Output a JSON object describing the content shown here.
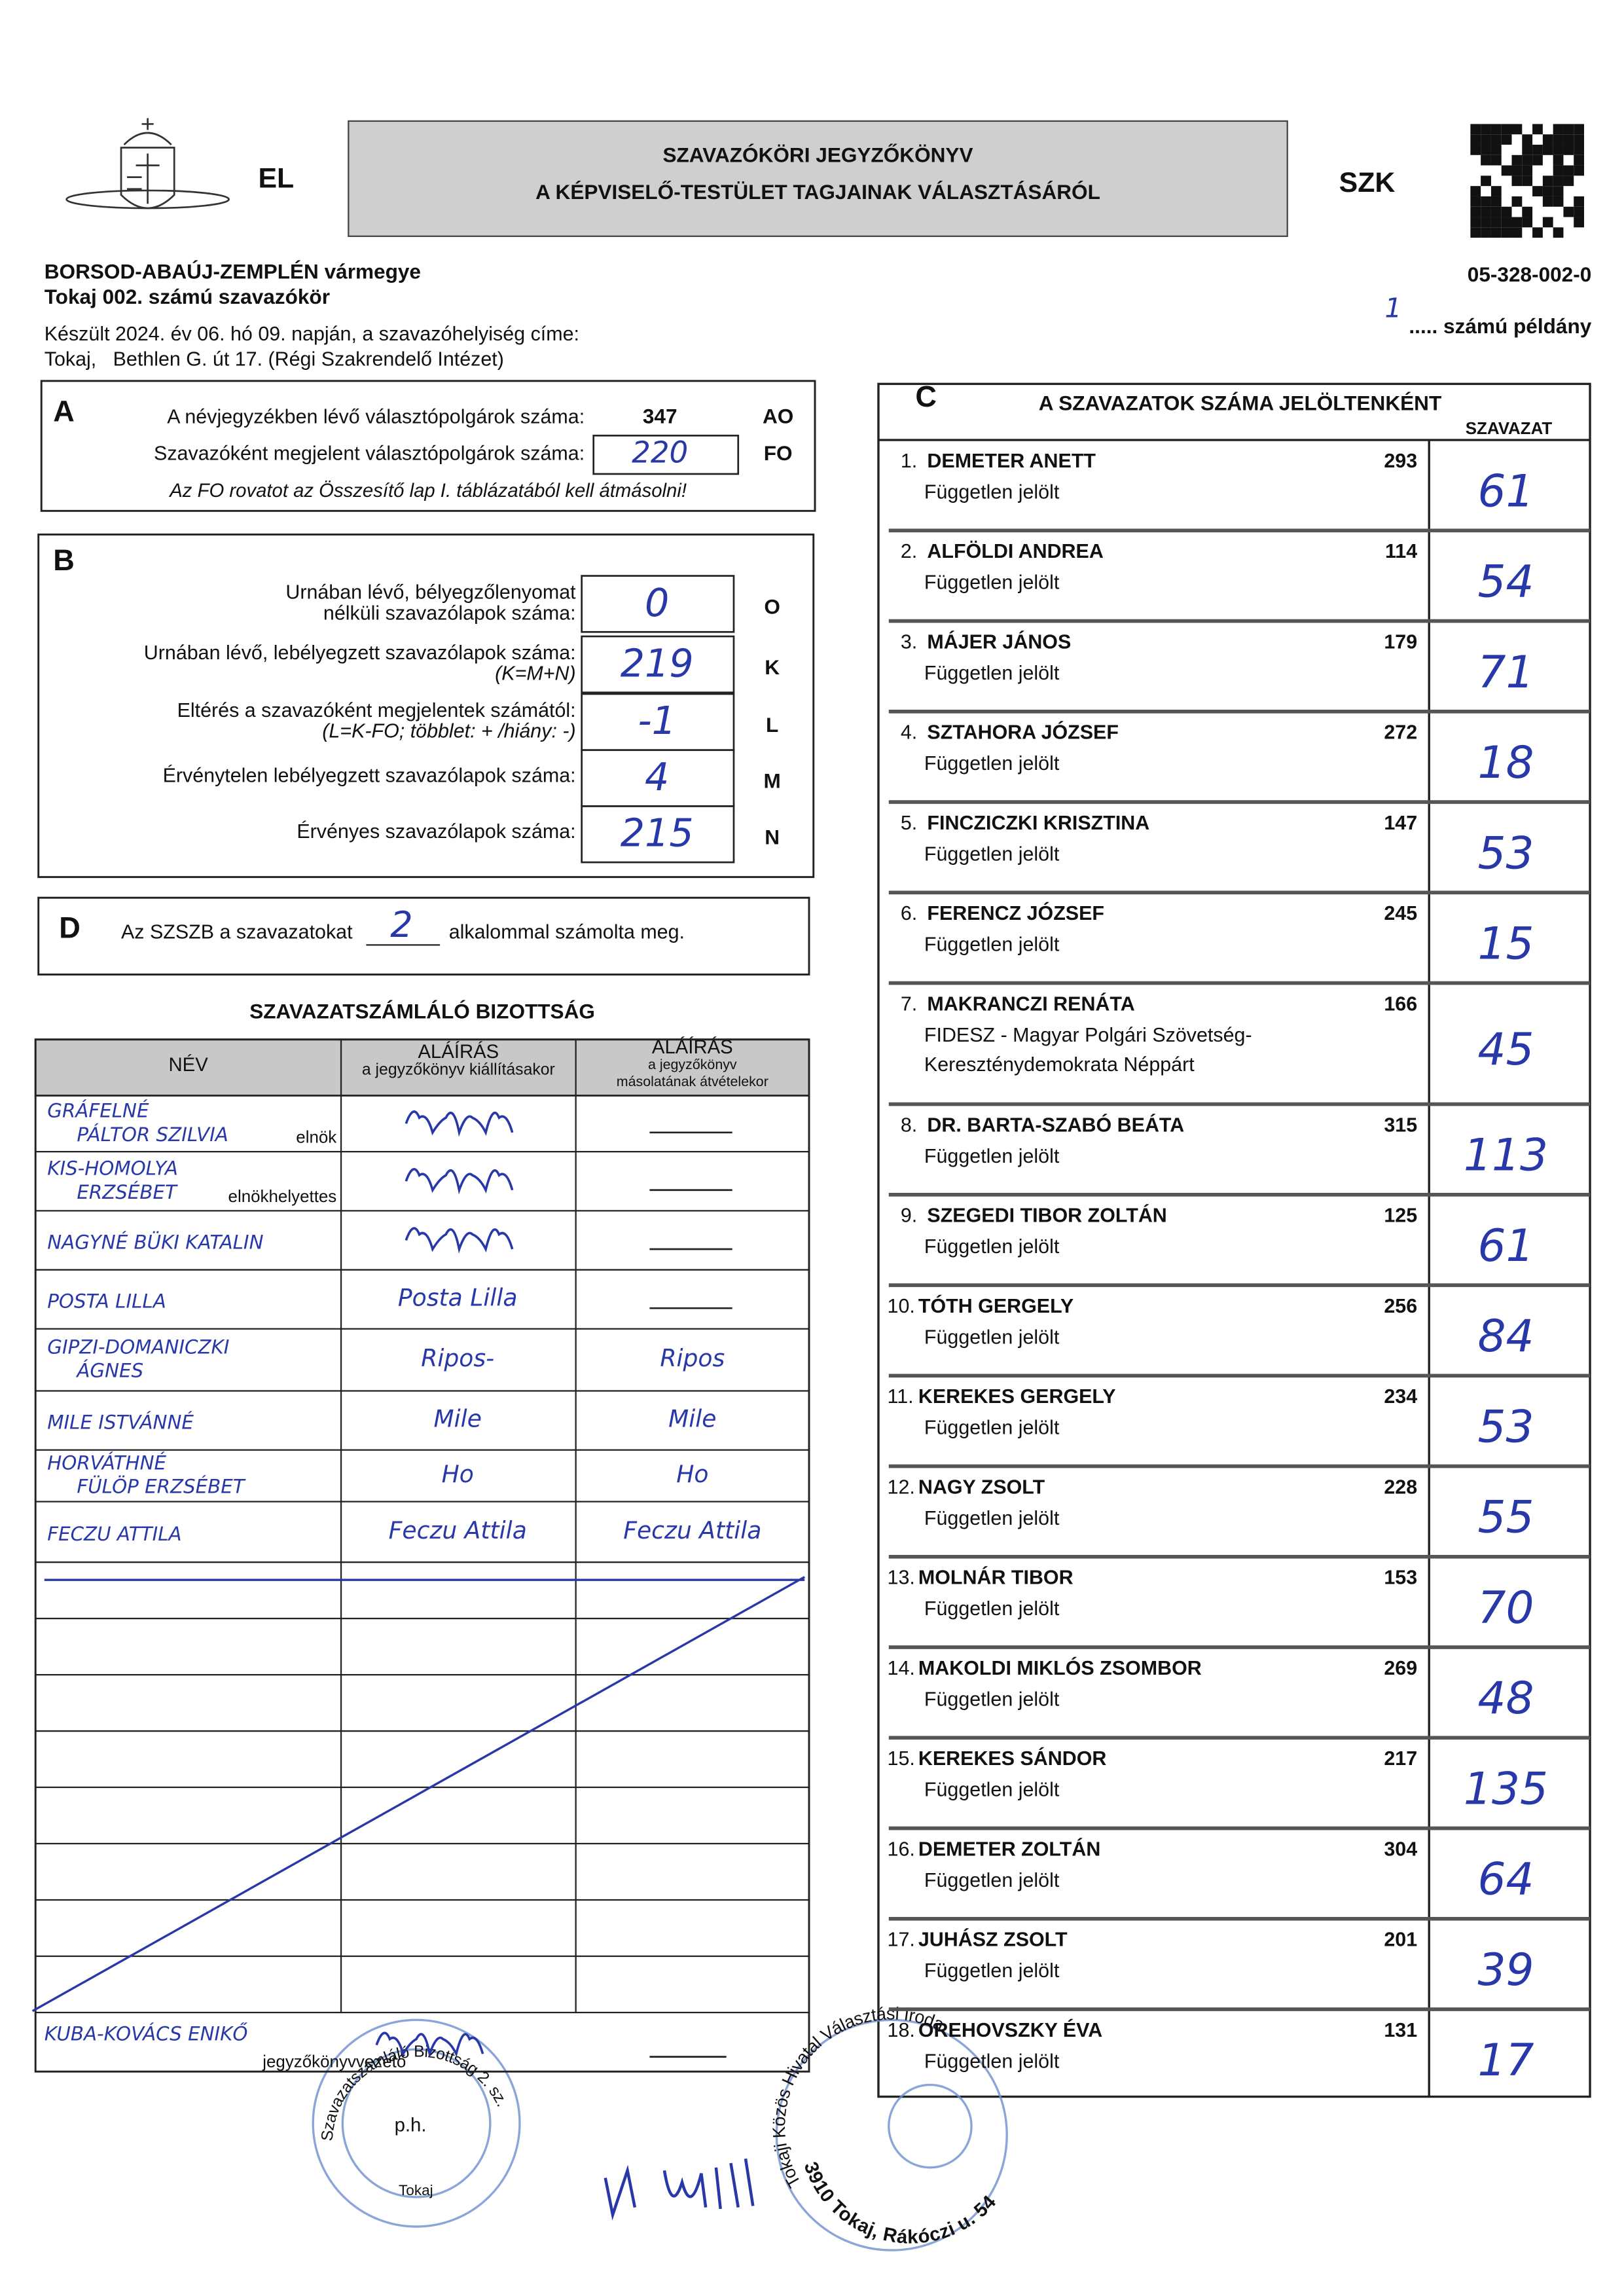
{
  "header": {
    "left_code": "EL",
    "title_line1": "SZAVAZÓKÖRI JEGYZŐKÖNYV",
    "title_line2": "A KÉPVISELŐ-TESTÜLET TAGJAINAK VÁLASZTÁSÁRÓL",
    "right_code": "SZK",
    "county": "BORSOD-ABAÚJ-ZEMPLÉN vármegye",
    "district": "Tokaj 002. számú szavazókör",
    "code": "05-328-002-0",
    "made": "Készült 2024. év 06. hó 09. napján, a szavazóhelyiség címe:",
    "address": "Tokaj,   Bethlen G. út 17. (Régi Szakrendelő Intézet)",
    "copy_number": "1",
    "copy_label": "..... számú példány"
  },
  "section_a": {
    "letter": "A",
    "rows": [
      {
        "label": "A névjegyzékben lévő választópolgárok száma:",
        "value": 347,
        "code": "AO"
      },
      {
        "label": "Szavazóként megjelent választópolgárok száma:",
        "value": "220",
        "code": "FO"
      }
    ],
    "note": "Az FO rovatot az Összesítő lap I. táblázatából kell átmásolni!"
  },
  "section_b": {
    "letter": "B",
    "rows": [
      {
        "lines": [
          "Urnában lévő, bélyegzőlenyomat",
          "nélküli szavazólapok száma:"
        ],
        "value": "0",
        "code": "O"
      },
      {
        "lines": [
          "Urnában lévő, lebélyegzett szavazólapok száma:",
          "(K=M+N)"
        ],
        "value": "219",
        "code": "K"
      },
      {
        "lines": [
          "Eltérés a szavazóként megjelentek számától:",
          "(L=K-FO; többlet: + /hiány: -)"
        ],
        "value": "-1",
        "code": "L"
      },
      {
        "lines": [
          "Érvénytelen lebélyegzett szavazólapok száma:"
        ],
        "value": "4",
        "code": "M"
      },
      {
        "lines": [
          "Érvényes szavazólapok száma:"
        ],
        "value": "215",
        "code": "N"
      }
    ]
  },
  "section_d": {
    "letter": "D",
    "text_before": "Az SZSZB a szavazatokat",
    "value": "2",
    "text_after": "alkalommal számolta meg."
  },
  "committee": {
    "title": "SZAVAZATSZÁMLÁLÓ BIZOTTSÁG",
    "headers": [
      [
        "NÉV"
      ],
      [
        "ALÁÍRÁS",
        "a jegyzőkönyv kiállításakor"
      ],
      [
        "ALÁÍRÁS",
        "a jegyzőkönyv",
        "másolatának átvételekor"
      ]
    ],
    "rows": [
      {
        "name": [
          "GRÁFELNÉ",
          "PÁLTOR SZILVIA"
        ],
        "role": "elnök"
      },
      {
        "name": [
          "KIS-HOMOLYA",
          "ERZSÉBET"
        ],
        "role": "elnökhelyettes"
      },
      {
        "name": [
          "NAGYNÉ BÜKI KATALIN"
        ]
      },
      {
        "name": [
          "POSTA LILLA"
        ],
        "signature": "Posta Lilla"
      },
      {
        "name": [
          "GIPZI-DOMANICZKI",
          "ÁGNES"
        ],
        "signature": "Ripos-",
        "copy_signature": "Ripos"
      },
      {
        "name": [
          "MILE ISTVÁNNÉ"
        ],
        "signature": "Mile",
        "copy_signature": "Mile"
      },
      {
        "name": [
          "HORVÁTHNÉ",
          "FÜLÖP ERZSÉBET"
        ],
        "signature": "Ho",
        "copy_signature": "Ho"
      },
      {
        "name": [
          "FECZU ATTILA"
        ],
        "signature": "Feczu Attila",
        "copy_signature": "Feczu Attila"
      }
    ],
    "recorder": {
      "name": "KUBA-KOVÁCS ENIKŐ",
      "role": "jegyzőkönyvvezető"
    },
    "seal": "p.h."
  },
  "section_c": {
    "letter": "C",
    "title": "A SZAVAZATOK SZÁMA JELÖLTENKÉNT",
    "column": "SZAVAZAT",
    "candidates": [
      {
        "number": "1.",
        "name": "DEMETER ANETT",
        "id": 293,
        "affiliation": [
          "Független jelölt"
        ],
        "votes": "61"
      },
      {
        "number": "2.",
        "name": "ALFÖLDI ANDREA",
        "id": 114,
        "affiliation": [
          "Független jelölt"
        ],
        "votes": "54"
      },
      {
        "number": "3.",
        "name": "MÁJER JÁNOS",
        "id": 179,
        "affiliation": [
          "Független jelölt"
        ],
        "votes": "71"
      },
      {
        "number": "4.",
        "name": "SZTAHORA JÓZSEF",
        "id": 272,
        "affiliation": [
          "Független jelölt"
        ],
        "votes": "18"
      },
      {
        "number": "5.",
        "name": "FINCZICZKI KRISZTINA",
        "id": 147,
        "affiliation": [
          "Független jelölt"
        ],
        "votes": "53"
      },
      {
        "number": "6.",
        "name": "FERENCZ JÓZSEF",
        "id": 245,
        "affiliation": [
          "Független jelölt"
        ],
        "votes": "15"
      },
      {
        "number": "7.",
        "name": "MAKRANCZI RENÁTA",
        "id": 166,
        "affiliation": [
          "FIDESZ - Magyar Polgári Szövetség-",
          "Kereszténydemokrata Néppárt"
        ],
        "votes": "45"
      },
      {
        "number": "8.",
        "name": "DR. BARTA-SZABÓ BEÁTA",
        "id": 315,
        "affiliation": [
          "Független jelölt"
        ],
        "votes": "113"
      },
      {
        "number": "9.",
        "name": "SZEGEDI TIBOR ZOLTÁN",
        "id": 125,
        "affiliation": [
          "Független jelölt"
        ],
        "votes": "61"
      },
      {
        "number": "10.",
        "name": "TÓTH GERGELY",
        "id": 256,
        "affiliation": [
          "Független jelölt"
        ],
        "votes": "84"
      },
      {
        "number": "11.",
        "name": "KEREKES GERGELY",
        "id": 234,
        "affiliation": [
          "Független jelölt"
        ],
        "votes": "53"
      },
      {
        "number": "12.",
        "name": "NAGY ZSOLT",
        "id": 228,
        "affiliation": [
          "Független jelölt"
        ],
        "votes": "55"
      },
      {
        "number": "13.",
        "name": "MOLNÁR TIBOR",
        "id": 153,
        "affiliation": [
          "Független jelölt"
        ],
        "votes": "70"
      },
      {
        "number": "14.",
        "name": "MAKOLDI MIKLÓS ZSOMBOR",
        "id": 269,
        "affiliation": [
          "Független jelölt"
        ],
        "votes": "48"
      },
      {
        "number": "15.",
        "name": "KEREKES SÁNDOR",
        "id": 217,
        "affiliation": [
          "Független jelölt"
        ],
        "votes": "135"
      },
      {
        "number": "16.",
        "name": "DEMETER ZOLTÁN",
        "id": 304,
        "affiliation": [
          "Független jelölt"
        ],
        "votes": "64"
      },
      {
        "number": "17.",
        "name": "JUHÁSZ ZSOLT",
        "id": 201,
        "affiliation": [
          "Független jelölt"
        ],
        "votes": "39"
      },
      {
        "number": "18.",
        "name": "OREHOVSZKY ÉVA",
        "id": 131,
        "affiliation": [
          "Független jelölt"
        ],
        "votes": "17"
      }
    ]
  },
  "stamps": {
    "committee": "Szavazatszámláló Bizottság 2. sz. Szavazókör",
    "committee_town": "Tokaj",
    "office": "Tokaji Közös Hivatal Választási Iroda",
    "office_address": "3910 Tokaj, Rákóczi u. 54."
  }
}
